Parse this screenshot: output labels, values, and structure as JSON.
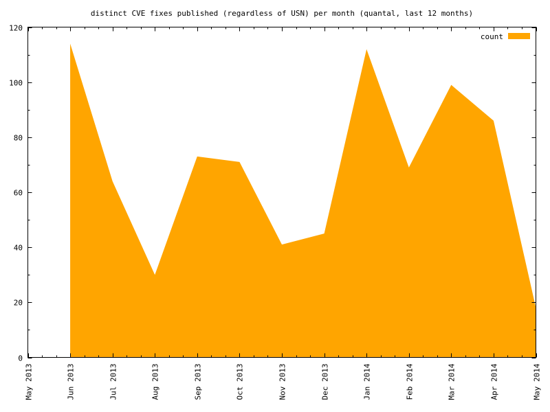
{
  "chart_data": {
    "type": "area",
    "title": "distinct CVE fixes published (regardless of USN) per month (quantal, last 12 months)",
    "xlabel": "",
    "ylabel": "",
    "x_ticks": [
      "May 2013",
      "Jun 2013",
      "Jul 2013",
      "Aug 2013",
      "Sep 2013",
      "Oct 2013",
      "Nov 2013",
      "Dec 2013",
      "Jan 2014",
      "Feb 2014",
      "Mar 2014",
      "Apr 2014",
      "May 2014"
    ],
    "y_ticks": [
      0,
      20,
      40,
      60,
      80,
      100,
      120
    ],
    "ylim": [
      0,
      120
    ],
    "legend_position": "top-right",
    "series": [
      {
        "name": "count",
        "color": "#ffa500",
        "points": [
          {
            "x": "Jun 2013",
            "y": 114
          },
          {
            "x": "Jul 2013",
            "y": 64
          },
          {
            "x": "Aug 2013",
            "y": 30
          },
          {
            "x": "Sep 2013",
            "y": 73
          },
          {
            "x": "Oct 2013",
            "y": 71
          },
          {
            "x": "Nov 2013",
            "y": 41
          },
          {
            "x": "Dec 2013",
            "y": 45
          },
          {
            "x": "Jan 2014",
            "y": 112
          },
          {
            "x": "Feb 2014",
            "y": 69
          },
          {
            "x": "Mar 2014",
            "y": 99
          },
          {
            "x": "Apr 2014",
            "y": 86
          },
          {
            "x": "May 2014",
            "y": 18
          }
        ]
      }
    ]
  }
}
